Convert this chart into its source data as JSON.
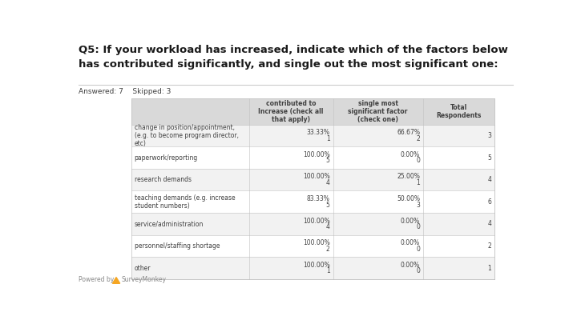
{
  "title": "Q5: If your workload has increased, indicate which of the factors below\nhas contributed significantly, and single out the most significant one:",
  "answered": "Answered: 7",
  "skipped": "Skipped: 3",
  "col_headers": [
    "contributed to\nIncrease (check all\nthat apply)",
    "single most\nsignificant factor\n(check one)",
    "Total\nRespondents"
  ],
  "rows": [
    {
      "label": "change in position/appointment,\n(e.g. to become program director,\netc)",
      "col1_pct": "33.33%",
      "col1_n": "1",
      "col2_pct": "66.67%",
      "col2_n": "2",
      "total": "3"
    },
    {
      "label": "paperwork/reporting",
      "col1_pct": "100.00%",
      "col1_n": "5",
      "col2_pct": "0.00%",
      "col2_n": "0",
      "total": "5"
    },
    {
      "label": "research demands",
      "col1_pct": "100.00%",
      "col1_n": "4",
      "col2_pct": "25.00%",
      "col2_n": "1",
      "total": "4"
    },
    {
      "label": "teaching demands (e.g. increase\nstudent numbers)",
      "col1_pct": "83.33%",
      "col1_n": "5",
      "col2_pct": "50.00%",
      "col2_n": "3",
      "total": "6"
    },
    {
      "label": "service/administration",
      "col1_pct": "100.00%",
      "col1_n": "4",
      "col2_pct": "0.00%",
      "col2_n": "0",
      "total": "4"
    },
    {
      "label": "personnel/staffing shortage",
      "col1_pct": "100.00%",
      "col1_n": "2",
      "col2_pct": "0.00%",
      "col2_n": "0",
      "total": "2"
    },
    {
      "label": "other",
      "col1_pct": "100.00%",
      "col1_n": "1",
      "col2_pct": "0.00%",
      "col2_n": "0",
      "total": "1"
    }
  ],
  "bg_color": "#ffffff",
  "header_bg": "#d9d9d9",
  "row_bg_even": "#f2f2f2",
  "row_bg_odd": "#ffffff",
  "border_color": "#c0c0c0",
  "text_color": "#404040",
  "title_fontsize": 9.5,
  "meta_fontsize": 6.5,
  "header_fontsize": 5.5,
  "cell_fontsize": 5.5,
  "footer_fontsize": 5.5
}
